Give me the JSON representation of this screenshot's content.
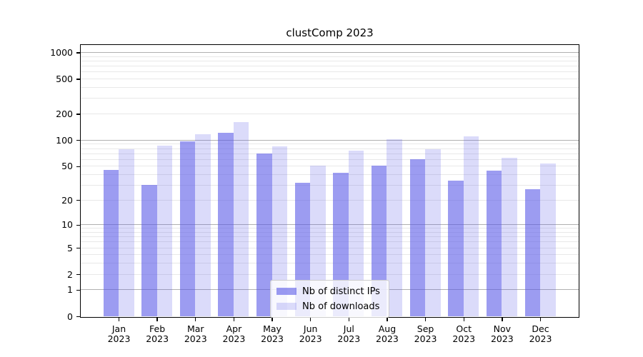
{
  "title": "clustComp 2023",
  "chart_data": {
    "type": "bar",
    "title": "clustComp 2023",
    "categories": [
      "Jan 2023",
      "Feb 2023",
      "Mar 2023",
      "Apr 2023",
      "May 2023",
      "Jun 2023",
      "Jul 2023",
      "Aug 2023",
      "Sep 2023",
      "Oct 2023",
      "Nov 2023",
      "Dec 2023"
    ],
    "series": [
      {
        "name": "Nb of distinct IPs",
        "values": [
          45,
          30,
          97,
          121,
          70,
          32,
          42,
          51,
          60,
          34,
          44,
          27
        ],
        "color": "rgba(90,90,232,0.6)"
      },
      {
        "name": "Nb of downloads",
        "values": [
          78,
          86,
          116,
          160,
          85,
          51,
          76,
          103,
          78,
          110,
          62,
          54
        ],
        "color": "rgba(90,90,232,0.22)"
      }
    ],
    "xlabel": "",
    "ylabel": "",
    "yscale": "log1p",
    "ylim": [
      0,
      1219
    ],
    "ytick_values": [
      0,
      1,
      2,
      5,
      10,
      20,
      50,
      100,
      200,
      500,
      1000
    ],
    "ytick_labels": [
      "0",
      "1",
      "2",
      "5",
      "10",
      "20",
      "50",
      "100",
      "200",
      "500",
      "1000"
    ],
    "major_grid_values": [
      1,
      10,
      100,
      1000
    ],
    "minor_grid_values": [
      2,
      3,
      4,
      5,
      6,
      7,
      8,
      9,
      20,
      30,
      40,
      50,
      60,
      70,
      80,
      90,
      200,
      300,
      400,
      500,
      600,
      700,
      800,
      900
    ],
    "grid": true,
    "legend_position": "lower center"
  },
  "colors": {
    "bar_ips": "rgba(90,90,232,0.6)",
    "bar_downloads": "rgba(90,90,232,0.22)",
    "major_grid": "#b0b0b0",
    "minor_grid": "#e8e8e8",
    "spine": "#000000",
    "legend_border": "#cccccc",
    "legend_bg": "rgba(255,255,255,0.8)"
  }
}
